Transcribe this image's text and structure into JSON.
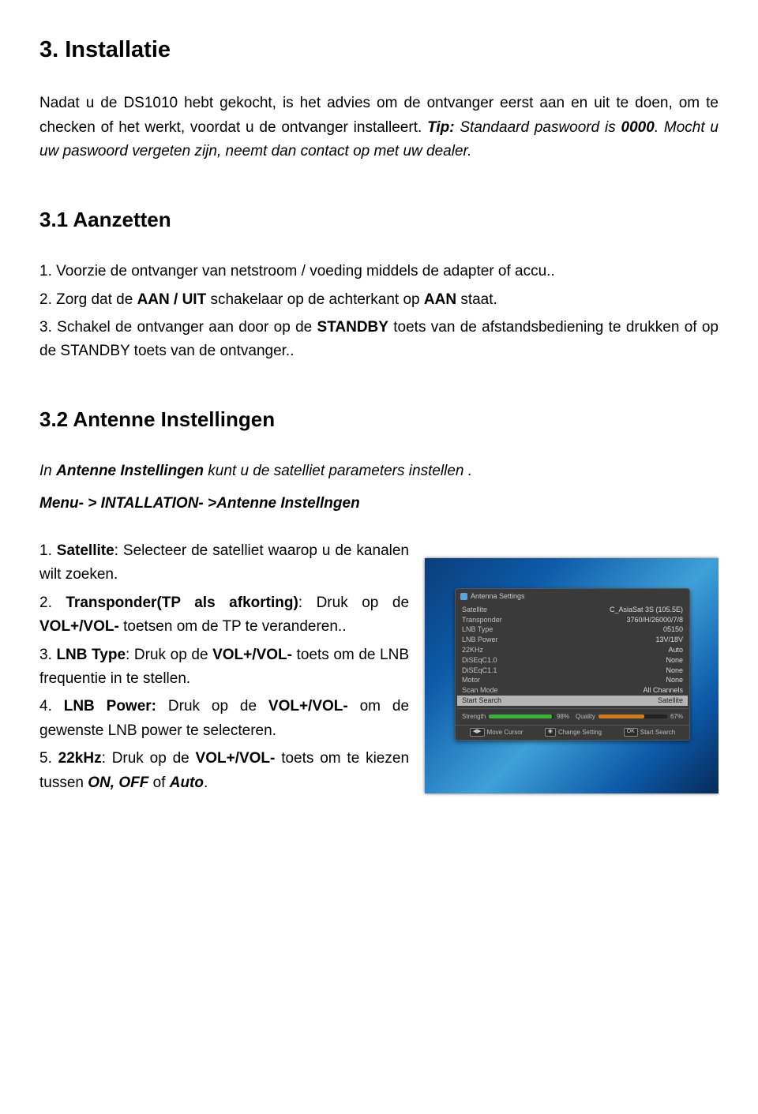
{
  "h1": "3. Installatie",
  "intro": {
    "p1a": "Nadat u de DS1010 hebt gekocht, is het advies om de ontvanger eerst aan en uit te doen, om te checken of het werkt, voordat u de ontvanger installeert. ",
    "tip_label": "Tip:",
    "tip_rest": " Standaard paswoord is ",
    "tip_code": "0000",
    "tip_after": ". Mocht u uw paswoord vergeten zijn, neemt dan contact op met uw dealer."
  },
  "h2a": "3.1 Aanzetten",
  "s31": {
    "i1a": "1. Voorzie de ontvanger van netstroom / voeding middels de adapter of accu..",
    "i2a": "2. Zorg dat de ",
    "i2b": "AAN / UIT",
    "i2c": " schakelaar op de achterkant op ",
    "i2d": "AAN",
    "i2e": " staat.",
    "i3a": "3. Schakel de ontvanger aan door op de ",
    "i3b": "STANDBY",
    "i3c": " toets van de afstandsbediening te drukken of op de STANDBY toets van de ontvanger.."
  },
  "h2b": "3.2 Antenne Instellingen",
  "s32intro": {
    "p1a": "In ",
    "p1b": "Antenne Instellingen",
    "p1c": " kunt u de satelliet parameters instellen .",
    "p2": "Menu- > INTALLATION- >Antenne Instellngen"
  },
  "s32list": {
    "i1a": "1. ",
    "i1b": "Satellite",
    "i1c": ": Selecteer de satelliet waarop u de kanalen wilt zoeken.",
    "i2a": "2. ",
    "i2b": "Transponder(TP als afkorting)",
    "i2c": ": Druk op de ",
    "i2d": "VOL+/VOL-",
    "i2e": " toetsen om de TP te veranderen..",
    "i3a": "3. ",
    "i3b": "LNB Type",
    "i3c": ": Druk op de ",
    "i3d": "VOL+/VOL-",
    "i3e": " toets om de LNB frequentie in te stellen.",
    "i4a": "4. ",
    "i4b": "LNB Power:",
    "i4c": " Druk op de ",
    "i4d": "VOL+/VOL-",
    "i4e": " om de gewenste LNB power te selecteren.",
    "i5a": "5. ",
    "i5b": "22kHz",
    "i5c": ": Druk op de ",
    "i5d": "VOL+/VOL-",
    "i5e": " toets om te kiezen tussen ",
    "i5f": "ON, OFF",
    "i5g": " of ",
    "i5h": "Auto",
    "i5i": "."
  },
  "dialog": {
    "title": "Antenna Settings",
    "rows": [
      {
        "k": "Satellite",
        "v": "C_AsiaSat 3S  (105.5E)"
      },
      {
        "k": "Transponder",
        "v": "3760/H/26000/7/8"
      },
      {
        "k": "LNB Type",
        "v": "05150"
      },
      {
        "k": "LNB Power",
        "v": "13V/18V"
      },
      {
        "k": "22KHz",
        "v": "Auto"
      },
      {
        "k": "DiSEqC1.0",
        "v": "None"
      },
      {
        "k": "DiSEqC1.1",
        "v": "None"
      },
      {
        "k": "Motor",
        "v": "None"
      },
      {
        "k": "Scan Mode",
        "v": "All Channels"
      }
    ],
    "hl": {
      "k": "Start Search",
      "v": "Satellite"
    },
    "bars": {
      "strength_label": "Strength",
      "strength_val": "98%",
      "strength_pct": 98,
      "quality_label": "Quality",
      "quality_val": "67%",
      "quality_pct": 67
    },
    "foot": {
      "a_key": "◀▶",
      "a": "Move Cursor",
      "b_key": "◉",
      "b": "Change Setting",
      "c_key": "OK",
      "c": "Start Search"
    }
  }
}
